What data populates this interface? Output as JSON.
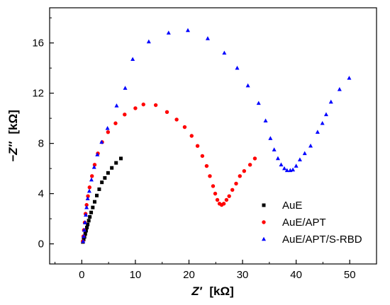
{
  "chart_data": {
    "type": "scatter",
    "title": "",
    "xlabel": {
      "var": "Z′",
      "unit": "[kΩ]"
    },
    "ylabel": {
      "var": "−Z″",
      "unit": "[kΩ]"
    },
    "xlim": [
      -6,
      55
    ],
    "ylim": [
      -1.6,
      18.8
    ],
    "xticks": [
      0,
      10,
      20,
      30,
      40,
      50
    ],
    "yticks": [
      0,
      4,
      8,
      12,
      16
    ],
    "grid": false,
    "legend_position": "bottom-right",
    "series": [
      {
        "name": "AuE",
        "color": "#000000",
        "marker": "square",
        "points": [
          [
            0.2,
            0.15
          ],
          [
            0.35,
            0.35
          ],
          [
            0.5,
            0.55
          ],
          [
            0.65,
            0.8
          ],
          [
            0.8,
            1.05
          ],
          [
            0.95,
            1.3
          ],
          [
            1.1,
            1.55
          ],
          [
            1.3,
            1.85
          ],
          [
            1.5,
            2.15
          ],
          [
            1.75,
            2.5
          ],
          [
            2.05,
            2.9
          ],
          [
            2.4,
            3.35
          ],
          [
            2.8,
            3.85
          ],
          [
            3.25,
            4.35
          ],
          [
            3.75,
            4.9
          ],
          [
            4.3,
            5.25
          ],
          [
            4.9,
            5.65
          ],
          [
            5.6,
            6.05
          ],
          [
            6.4,
            6.45
          ],
          [
            7.3,
            6.8
          ]
        ]
      },
      {
        "name": "AuE/APT",
        "color": "#ff0000",
        "marker": "circle",
        "points": [
          [
            0.2,
            0.2
          ],
          [
            0.3,
            0.6
          ],
          [
            0.4,
            1.1
          ],
          [
            0.55,
            1.7
          ],
          [
            0.7,
            2.4
          ],
          [
            0.9,
            3.1
          ],
          [
            1.15,
            3.8
          ],
          [
            1.45,
            4.5
          ],
          [
            1.9,
            5.4
          ],
          [
            2.4,
            6.3
          ],
          [
            3.0,
            7.2
          ],
          [
            3.8,
            8.1
          ],
          [
            4.9,
            8.9
          ],
          [
            6.3,
            9.6
          ],
          [
            8.0,
            10.3
          ],
          [
            10.0,
            10.8
          ],
          [
            11.5,
            11.1
          ],
          [
            13.8,
            11.05
          ],
          [
            15.9,
            10.5
          ],
          [
            17.7,
            9.9
          ],
          [
            19.2,
            9.3
          ],
          [
            20.5,
            8.6
          ],
          [
            21.6,
            7.8
          ],
          [
            22.5,
            7.0
          ],
          [
            23.3,
            6.2
          ],
          [
            23.9,
            5.4
          ],
          [
            24.5,
            4.6
          ],
          [
            24.9,
            4.0
          ],
          [
            25.3,
            3.5
          ],
          [
            25.7,
            3.2
          ],
          [
            26.1,
            3.1
          ],
          [
            26.5,
            3.2
          ],
          [
            27.0,
            3.5
          ],
          [
            27.5,
            3.8
          ],
          [
            28.1,
            4.3
          ],
          [
            28.8,
            4.8
          ],
          [
            29.5,
            5.4
          ],
          [
            30.3,
            5.8
          ],
          [
            31.4,
            6.3
          ],
          [
            32.3,
            6.8
          ]
        ]
      },
      {
        "name": "AuE/APT/S-RBD",
        "color": "#0000ff",
        "marker": "triangle",
        "points": [
          [
            0.25,
            0.2
          ],
          [
            0.35,
            0.6
          ],
          [
            0.45,
            1.1
          ],
          [
            0.6,
            1.7
          ],
          [
            0.75,
            2.3
          ],
          [
            0.9,
            2.9
          ],
          [
            1.1,
            3.6
          ],
          [
            1.4,
            4.2
          ],
          [
            1.8,
            5.1
          ],
          [
            2.3,
            6.1
          ],
          [
            2.9,
            7.1
          ],
          [
            3.7,
            8.1
          ],
          [
            4.8,
            9.2
          ],
          [
            6.5,
            11.0
          ],
          [
            8.1,
            12.4
          ],
          [
            9.5,
            14.7
          ],
          [
            12.5,
            16.1
          ],
          [
            16.2,
            16.8
          ],
          [
            19.8,
            17.0
          ],
          [
            23.5,
            16.35
          ],
          [
            26.6,
            15.2
          ],
          [
            29.0,
            14.0
          ],
          [
            31.0,
            12.6
          ],
          [
            33.0,
            11.2
          ],
          [
            34.3,
            9.8
          ],
          [
            35.2,
            8.4
          ],
          [
            35.9,
            7.5
          ],
          [
            36.6,
            6.8
          ],
          [
            37.2,
            6.3
          ],
          [
            37.8,
            6.0
          ],
          [
            38.3,
            5.85
          ],
          [
            38.9,
            5.85
          ],
          [
            39.4,
            5.9
          ],
          [
            40.0,
            6.2
          ],
          [
            40.7,
            6.7
          ],
          [
            41.6,
            7.2
          ],
          [
            42.7,
            7.8
          ],
          [
            44.0,
            8.9
          ],
          [
            44.9,
            9.6
          ],
          [
            45.6,
            10.3
          ],
          [
            46.5,
            11.3
          ],
          [
            48.1,
            12.3
          ],
          [
            49.9,
            13.2
          ]
        ]
      }
    ]
  }
}
